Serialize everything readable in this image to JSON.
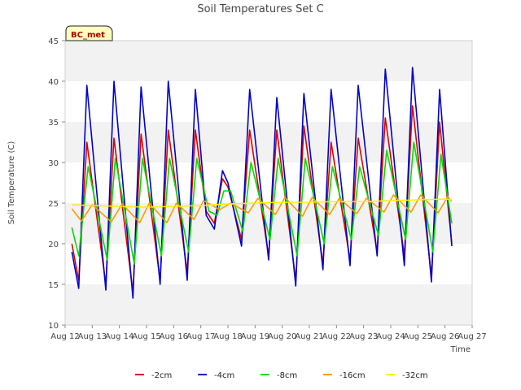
{
  "chart_data": {
    "type": "line",
    "title": "Soil Temperatures Set C",
    "xlabel": "Time",
    "ylabel": "Soil Temperature (C)",
    "ylim": [
      10,
      45
    ],
    "yticks": [
      10,
      15,
      20,
      25,
      30,
      35,
      40,
      45
    ],
    "xlim": [
      12,
      27
    ],
    "xticks": [
      {
        "v": 12,
        "label": "Aug 12"
      },
      {
        "v": 13,
        "label": "Aug 13"
      },
      {
        "v": 14,
        "label": "Aug 14"
      },
      {
        "v": 15,
        "label": "Aug 15"
      },
      {
        "v": 16,
        "label": "Aug 16"
      },
      {
        "v": 17,
        "label": "Aug 17"
      },
      {
        "v": 18,
        "label": "Aug 18"
      },
      {
        "v": 19,
        "label": "Aug 19"
      },
      {
        "v": 20,
        "label": "Aug 20"
      },
      {
        "v": 21,
        "label": "Aug 21"
      },
      {
        "v": 22,
        "label": "Aug 22"
      },
      {
        "v": 23,
        "label": "Aug 23"
      },
      {
        "v": 24,
        "label": "Aug 24"
      },
      {
        "v": 25,
        "label": "Aug 25"
      },
      {
        "v": 26,
        "label": "Aug 26"
      },
      {
        "v": 27,
        "label": "Aug 27"
      }
    ],
    "grid": "alternating horizontal bands",
    "legend_position": "bottom",
    "badge": "BC_met",
    "series": [
      {
        "name": "-2cm",
        "color": "#dd0000",
        "points": [
          [
            12.25,
            20.0
          ],
          [
            12.5,
            15.5
          ],
          [
            12.8,
            32.5
          ],
          [
            13.5,
            15.0
          ],
          [
            13.8,
            33.0
          ],
          [
            14.5,
            14.0
          ],
          [
            14.8,
            33.5
          ],
          [
            15.5,
            15.5
          ],
          [
            15.8,
            34.0
          ],
          [
            16.5,
            16.5
          ],
          [
            16.8,
            34.0
          ],
          [
            17.2,
            24.0
          ],
          [
            17.5,
            22.5
          ],
          [
            17.8,
            28.0
          ],
          [
            18.0,
            27.0
          ],
          [
            18.5,
            20.5
          ],
          [
            18.8,
            34.0
          ],
          [
            19.5,
            18.5
          ],
          [
            19.8,
            34.0
          ],
          [
            20.5,
            15.5
          ],
          [
            20.8,
            34.5
          ],
          [
            21.5,
            17.5
          ],
          [
            21.8,
            32.5
          ],
          [
            22.5,
            18.0
          ],
          [
            22.8,
            33.0
          ],
          [
            23.5,
            19.0
          ],
          [
            23.8,
            35.5
          ],
          [
            24.5,
            18.5
          ],
          [
            24.8,
            37.0
          ],
          [
            25.5,
            16.0
          ],
          [
            25.8,
            35.0
          ],
          [
            26.25,
            20.0
          ]
        ]
      },
      {
        "name": "-4cm",
        "color": "#0000cc",
        "points": [
          [
            12.25,
            19.0
          ],
          [
            12.5,
            14.5
          ],
          [
            12.8,
            39.5
          ],
          [
            13.5,
            14.3
          ],
          [
            13.8,
            40.0
          ],
          [
            14.5,
            13.3
          ],
          [
            14.8,
            39.3
          ],
          [
            15.5,
            15.0
          ],
          [
            15.8,
            40.0
          ],
          [
            16.5,
            15.5
          ],
          [
            16.8,
            39.0
          ],
          [
            17.2,
            23.5
          ],
          [
            17.5,
            21.8
          ],
          [
            17.8,
            29.0
          ],
          [
            18.0,
            27.5
          ],
          [
            18.5,
            19.7
          ],
          [
            18.8,
            39.0
          ],
          [
            19.5,
            18.0
          ],
          [
            19.8,
            38.0
          ],
          [
            20.5,
            14.8
          ],
          [
            20.8,
            38.5
          ],
          [
            21.5,
            16.8
          ],
          [
            21.8,
            39.0
          ],
          [
            22.5,
            17.3
          ],
          [
            22.8,
            39.5
          ],
          [
            23.5,
            18.5
          ],
          [
            23.8,
            41.5
          ],
          [
            24.5,
            17.3
          ],
          [
            24.8,
            41.7
          ],
          [
            25.5,
            15.3
          ],
          [
            25.8,
            39.0
          ],
          [
            26.25,
            19.7
          ]
        ]
      },
      {
        "name": "-8cm",
        "color": "#00dd00",
        "points": [
          [
            12.25,
            22.0
          ],
          [
            12.5,
            18.5
          ],
          [
            12.85,
            29.5
          ],
          [
            13.55,
            18.0
          ],
          [
            13.85,
            30.5
          ],
          [
            14.55,
            17.5
          ],
          [
            14.85,
            30.5
          ],
          [
            15.55,
            18.5
          ],
          [
            15.85,
            30.5
          ],
          [
            16.55,
            19.0
          ],
          [
            16.85,
            30.5
          ],
          [
            17.3,
            24.0
          ],
          [
            17.6,
            23.5
          ],
          [
            17.85,
            26.5
          ],
          [
            18.1,
            26.5
          ],
          [
            18.55,
            21.5
          ],
          [
            18.85,
            30.0
          ],
          [
            19.55,
            20.5
          ],
          [
            19.85,
            30.5
          ],
          [
            20.55,
            18.5
          ],
          [
            20.85,
            30.5
          ],
          [
            21.55,
            20.0
          ],
          [
            21.85,
            29.5
          ],
          [
            22.55,
            20.5
          ],
          [
            22.85,
            29.5
          ],
          [
            23.55,
            21.0
          ],
          [
            23.85,
            31.5
          ],
          [
            24.55,
            20.5
          ],
          [
            24.85,
            32.5
          ],
          [
            25.55,
            19.0
          ],
          [
            25.85,
            31.0
          ],
          [
            26.25,
            22.5
          ]
        ]
      },
      {
        "name": "-16cm",
        "color": "#ff9900",
        "points": [
          [
            12.25,
            24.3
          ],
          [
            12.6,
            22.8
          ],
          [
            13.0,
            24.8
          ],
          [
            13.7,
            22.7
          ],
          [
            14.1,
            24.9
          ],
          [
            14.75,
            22.6
          ],
          [
            15.1,
            25.0
          ],
          [
            15.75,
            22.6
          ],
          [
            16.1,
            25.0
          ],
          [
            16.75,
            23.0
          ],
          [
            17.1,
            25.3
          ],
          [
            17.7,
            24.2
          ],
          [
            18.1,
            25.0
          ],
          [
            18.75,
            23.8
          ],
          [
            19.1,
            25.6
          ],
          [
            19.75,
            23.6
          ],
          [
            20.1,
            25.7
          ],
          [
            20.75,
            23.4
          ],
          [
            21.1,
            25.7
          ],
          [
            21.75,
            23.6
          ],
          [
            22.1,
            25.6
          ],
          [
            22.75,
            23.7
          ],
          [
            23.1,
            25.6
          ],
          [
            23.75,
            23.9
          ],
          [
            24.1,
            26.0
          ],
          [
            24.75,
            23.9
          ],
          [
            25.1,
            26.0
          ],
          [
            25.75,
            23.8
          ],
          [
            26.1,
            25.8
          ],
          [
            26.25,
            25.2
          ]
        ]
      },
      {
        "name": "-32cm",
        "color": "#ffee00",
        "points": [
          [
            12.25,
            24.8
          ],
          [
            13.0,
            24.7
          ],
          [
            14.0,
            24.6
          ],
          [
            15.0,
            24.5
          ],
          [
            16.0,
            24.6
          ],
          [
            17.0,
            24.7
          ],
          [
            18.0,
            24.9
          ],
          [
            19.0,
            25.0
          ],
          [
            20.0,
            25.1
          ],
          [
            21.0,
            25.1
          ],
          [
            22.0,
            25.2
          ],
          [
            23.0,
            25.2
          ],
          [
            24.0,
            25.3
          ],
          [
            25.0,
            25.4
          ],
          [
            26.0,
            25.5
          ],
          [
            26.25,
            25.4
          ]
        ]
      }
    ]
  }
}
